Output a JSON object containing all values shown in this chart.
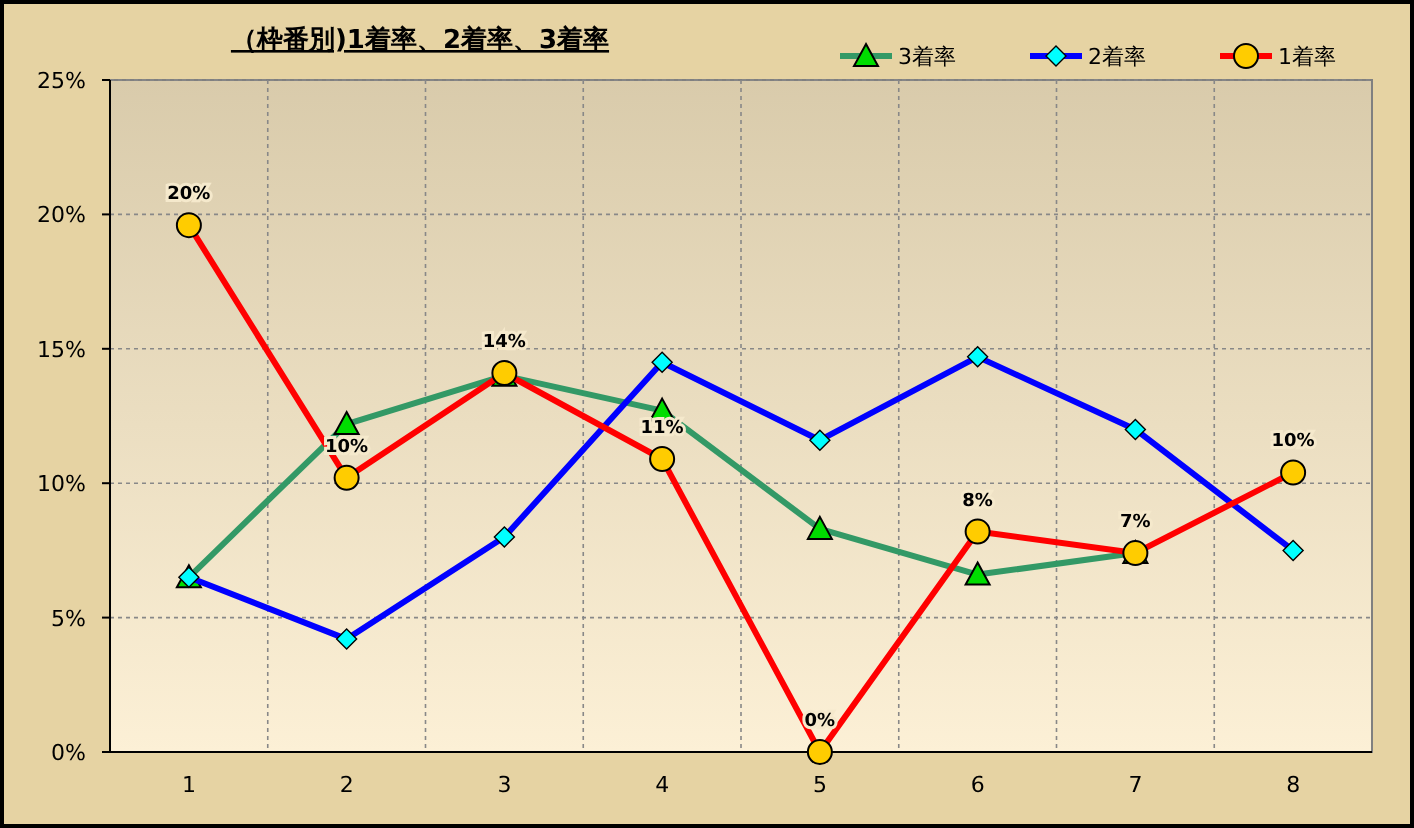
{
  "chart_data": {
    "type": "line",
    "title": "（枠番別)1着率、2着率、3着率",
    "categories": [
      "1",
      "2",
      "3",
      "4",
      "5",
      "6",
      "7",
      "8"
    ],
    "ylim": [
      0,
      25
    ],
    "yticks": [
      {
        "value": 0,
        "label": "0%"
      },
      {
        "value": 5,
        "label": "5%"
      },
      {
        "value": 10,
        "label": "10%"
      },
      {
        "value": 15,
        "label": "15%"
      },
      {
        "value": 20,
        "label": "20%"
      },
      {
        "value": 25,
        "label": "25%"
      }
    ],
    "grid": true,
    "legend": "top right",
    "series": [
      {
        "name": "3着率",
        "color": "#339966",
        "marker": "triangle",
        "values": [
          6.5,
          12.2,
          14.0,
          12.7,
          8.3,
          6.6,
          7.4,
          null
        ]
      },
      {
        "name": "2着率",
        "color": "#0000ff",
        "marker": "diamond",
        "values": [
          6.5,
          4.2,
          8.0,
          14.5,
          11.6,
          14.7,
          12.0,
          7.5
        ]
      },
      {
        "name": "1着率",
        "color": "#ff0000",
        "marker": "circle",
        "values": [
          19.6,
          10.2,
          14.1,
          10.9,
          0,
          8.2,
          7.4,
          10.4
        ],
        "value_labels": [
          "20%",
          "10%",
          "14%",
          "11%",
          "0%",
          "8%",
          "7%",
          "10%"
        ]
      }
    ]
  }
}
